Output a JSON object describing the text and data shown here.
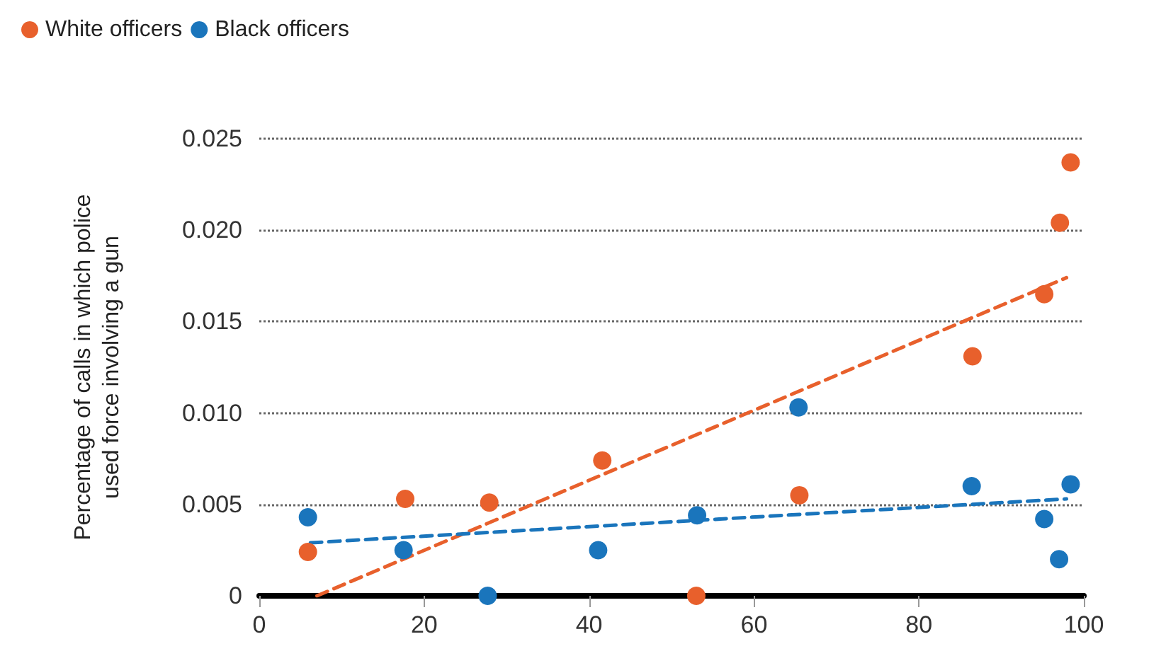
{
  "chart_data": {
    "type": "scatter",
    "ylabel": "Percentage of calls in which police\nused force involving a gun",
    "xlim": [
      0,
      100
    ],
    "xticks": [
      0,
      20,
      40,
      60,
      80,
      100
    ],
    "ylim": [
      0,
      0.025
    ],
    "yticks": [
      0,
      {
        "value": 0.005,
        "label": "0.005"
      },
      {
        "value": 0.01,
        "label": "0.010"
      },
      {
        "value": 0.015,
        "label": "0.015"
      },
      {
        "value": 0.02,
        "label": "0.020"
      },
      {
        "value": 0.025,
        "label": "0.025"
      }
    ],
    "grid": "y",
    "legend": "top left",
    "marker": "circle",
    "series": [
      {
        "name": "White officers",
        "color": "#e8602c",
        "x": [
          5.9,
          17.7,
          27.9,
          41.6,
          53.0,
          65.5,
          86.5,
          95.2,
          97.1,
          98.4
        ],
        "values": [
          0.0024,
          0.0053,
          0.0051,
          0.0074,
          0,
          0.0055,
          0.0131,
          0.0165,
          0.0204,
          0.0237
        ]
      },
      {
        "name": "Black officers",
        "color": "#1a75bc",
        "x": [
          5.9,
          17.5,
          27.7,
          41.1,
          53.1,
          65.4,
          86.4,
          95.2,
          97.0,
          98.4
        ],
        "values": [
          0.0043,
          0.0025,
          0,
          0.0025,
          0.0044,
          0.0103,
          0.006,
          0.0042,
          0.002,
          0.0061
        ]
      },
      {
        "type": "line",
        "color": "#e8602c",
        "marker": "none",
        "line_style": "dashed",
        "x": [
          7,
          97.9
        ],
        "values": [
          0,
          0.0174
        ]
      },
      {
        "type": "line",
        "color": "#1a75bc",
        "marker": "none",
        "line_style": "dashed",
        "x": [
          6.2,
          97.9
        ],
        "values": [
          0.0029,
          0.0053
        ]
      }
    ]
  }
}
